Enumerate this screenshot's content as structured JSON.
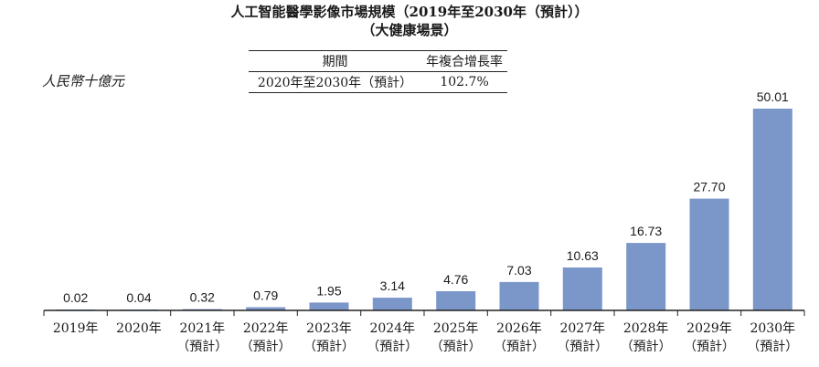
{
  "title_line1": "人工智能醫學影像市場規模（2019年至2030年（預計））",
  "title_line2": "（大健康場景）",
  "unit_label": "人民幣十億元",
  "cagr_table": {
    "header_period": "期間",
    "header_cagr": "年複合增長率",
    "period": "2020年至2030年（預計）",
    "cagr": "102.7%"
  },
  "colors": {
    "bar": "#7b96c8",
    "axis": "#222222"
  },
  "chart_data": {
    "type": "bar",
    "title": "人工智能醫學影像市場規模（2019年至2030年（預計））（大健康場景）",
    "ylabel": "人民幣十億元",
    "xlabel": "",
    "ylim": [
      0,
      50.01
    ],
    "categories": [
      "2019年",
      "2020年",
      "2021年",
      "2022年",
      "2023年",
      "2024年",
      "2025年",
      "2026年",
      "2027年",
      "2028年",
      "2029年",
      "2030年"
    ],
    "category_sublabels": [
      "",
      "",
      "（預計）",
      "（預計）",
      "（預計）",
      "（預計）",
      "（預計）",
      "（預計）",
      "（預計）",
      "（預計）",
      "（預計）",
      "（預計）"
    ],
    "values": [
      0.02,
      0.04,
      0.32,
      0.79,
      1.95,
      3.14,
      4.76,
      7.03,
      10.63,
      16.73,
      27.7,
      50.01
    ],
    "value_labels": [
      "0.02",
      "0.04",
      "0.32",
      "0.79",
      "1.95",
      "3.14",
      "4.76",
      "7.03",
      "10.63",
      "16.73",
      "27.70",
      "50.01"
    ]
  }
}
